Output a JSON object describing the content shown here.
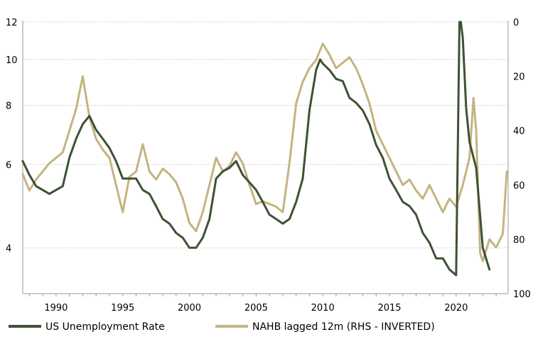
{
  "chart_data": {
    "type": "line",
    "title": "",
    "x_ticks": [
      "1990",
      "1995",
      "2000",
      "2005",
      "2010",
      "2015",
      "2020"
    ],
    "xlim": [
      1987.5,
      2023.9
    ],
    "left_axis": {
      "ticks": [
        "4",
        "6",
        "8",
        "10",
        "12"
      ],
      "scale": "log",
      "ylim": [
        3.2,
        12
      ]
    },
    "right_axis": {
      "ticks": [
        "0",
        "20",
        "40",
        "60",
        "80",
        "100"
      ],
      "inverted": true,
      "ylim": [
        0,
        100
      ]
    },
    "grid": "horizontal dotted",
    "legend_position": "bottom",
    "series": [
      {
        "name": "US Unemployment Rate",
        "axis": "left",
        "color": "#3d5234",
        "x": [
          1987.5,
          1988.0,
          1988.5,
          1989.0,
          1989.5,
          1990.0,
          1990.5,
          1991.0,
          1991.5,
          1992.0,
          1992.5,
          1993.0,
          1993.5,
          1994.0,
          1994.5,
          1995.0,
          1995.5,
          1996.0,
          1996.5,
          1997.0,
          1997.5,
          1998.0,
          1998.5,
          1999.0,
          1999.5,
          2000.0,
          2000.5,
          2001.0,
          2001.5,
          2002.0,
          2002.5,
          2003.0,
          2003.5,
          2004.0,
          2004.5,
          2005.0,
          2005.5,
          2006.0,
          2006.5,
          2007.0,
          2007.5,
          2008.0,
          2008.5,
          2009.0,
          2009.5,
          2009.8,
          2010.0,
          2010.5,
          2011.0,
          2011.5,
          2012.0,
          2012.5,
          2013.0,
          2013.5,
          2014.0,
          2014.5,
          2015.0,
          2015.5,
          2016.0,
          2016.5,
          2017.0,
          2017.5,
          2018.0,
          2018.5,
          2019.0,
          2019.5,
          2020.0,
          2020.25,
          2020.35,
          2020.5,
          2020.75,
          2021.0,
          2021.5,
          2022.0,
          2022.5
        ],
        "values": [
          6.1,
          5.7,
          5.4,
          5.3,
          5.2,
          5.3,
          5.4,
          6.2,
          6.8,
          7.3,
          7.6,
          7.1,
          6.8,
          6.5,
          6.1,
          5.6,
          5.6,
          5.6,
          5.3,
          5.2,
          4.9,
          4.6,
          4.5,
          4.3,
          4.2,
          4.0,
          4.0,
          4.2,
          4.6,
          5.6,
          5.8,
          5.9,
          6.1,
          5.7,
          5.5,
          5.3,
          5.0,
          4.7,
          4.6,
          4.5,
          4.6,
          5.0,
          5.6,
          7.8,
          9.5,
          10.0,
          9.8,
          9.5,
          9.1,
          9.0,
          8.3,
          8.1,
          7.8,
          7.3,
          6.6,
          6.2,
          5.6,
          5.3,
          5.0,
          4.9,
          4.7,
          4.3,
          4.1,
          3.8,
          3.8,
          3.6,
          3.5,
          12.0,
          13.3,
          11.1,
          7.9,
          6.7,
          5.9,
          4.0,
          3.6
        ]
      },
      {
        "name": "NAHB lagged 12m (RHS - INVERTED)",
        "axis": "right",
        "color": "#c3b480",
        "x": [
          1987.5,
          1988.0,
          1988.5,
          1989.0,
          1989.5,
          1990.0,
          1990.5,
          1991.0,
          1991.5,
          1992.0,
          1992.5,
          1993.0,
          1993.5,
          1994.0,
          1994.5,
          1995.0,
          1995.5,
          1996.0,
          1996.5,
          1997.0,
          1997.5,
          1998.0,
          1998.5,
          1999.0,
          1999.5,
          2000.0,
          2000.5,
          2001.0,
          2001.5,
          2002.0,
          2002.5,
          2003.0,
          2003.5,
          2004.0,
          2004.5,
          2005.0,
          2005.5,
          2006.0,
          2006.5,
          2007.0,
          2007.5,
          2008.0,
          2008.5,
          2009.0,
          2009.5,
          2010.0,
          2010.5,
          2011.0,
          2011.5,
          2012.0,
          2012.5,
          2013.0,
          2013.5,
          2014.0,
          2014.5,
          2015.0,
          2015.5,
          2016.0,
          2016.5,
          2017.0,
          2017.5,
          2018.0,
          2018.5,
          2019.0,
          2019.5,
          2020.0,
          2020.5,
          2021.0,
          2021.3,
          2021.5,
          2021.8,
          2022.0,
          2022.5,
          2023.0,
          2023.5,
          2023.8
        ],
        "values": [
          56,
          62,
          58,
          55,
          52,
          50,
          48,
          40,
          32,
          20,
          35,
          43,
          47,
          50,
          60,
          70,
          57,
          55,
          45,
          55,
          58,
          54,
          56,
          59,
          65,
          74,
          77,
          70,
          60,
          50,
          55,
          53,
          48,
          52,
          60,
          67,
          66,
          67,
          68,
          70,
          52,
          30,
          22,
          17,
          14,
          8,
          12,
          17,
          15,
          13,
          17,
          23,
          30,
          40,
          45,
          50,
          55,
          60,
          58,
          62,
          65,
          60,
          65,
          70,
          65,
          68,
          60,
          50,
          28,
          40,
          85,
          88,
          80,
          83,
          78,
          55
        ]
      }
    ]
  }
}
